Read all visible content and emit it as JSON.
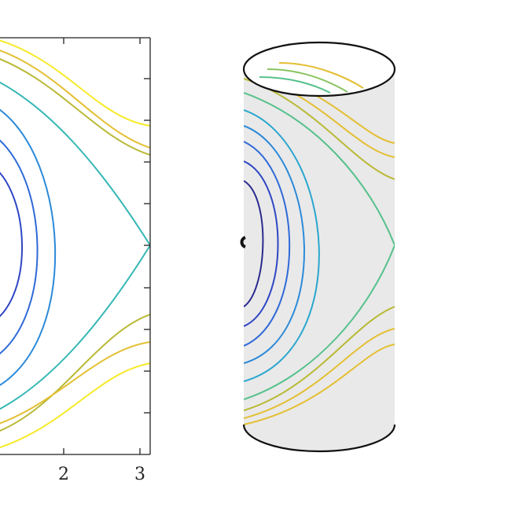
{
  "left_panel": {
    "x_tick_labels": [
      "2",
      "3"
    ]
  },
  "colors": {
    "level_colors": [
      "#2a2a8f",
      "#2f46c4",
      "#2f6ad8",
      "#2c8ad9",
      "#2aa6cf",
      "#35b7b4",
      "#57c18c",
      "#88c460",
      "#b9b936",
      "#e4bf33",
      "#f6ea2a"
    ],
    "axes": "#222222",
    "cylinder_fill": "#e9e9e9",
    "cylinder_outline": "#111111"
  }
}
